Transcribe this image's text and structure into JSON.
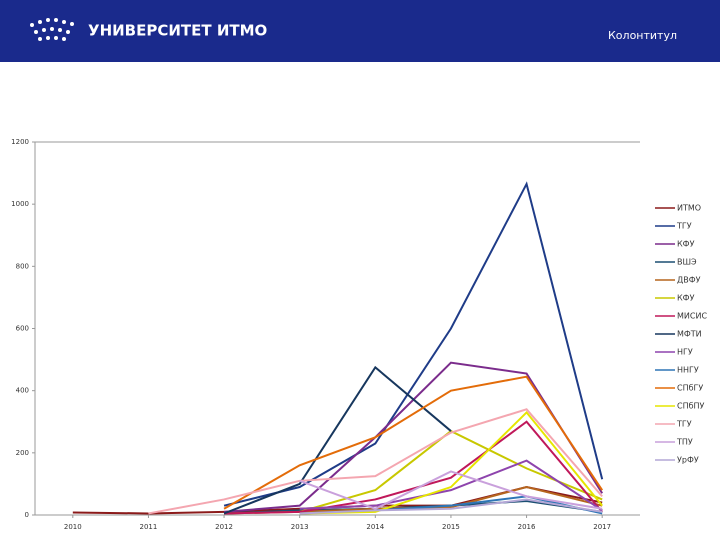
{
  "header": {
    "logo": "УНИВЕРСИТЕТ ИТМО",
    "running_title": "Колонтитул"
  },
  "chart_data": {
    "type": "line",
    "x": [
      2010,
      2011,
      2012,
      2013,
      2014,
      2015,
      2016,
      2017
    ],
    "xlim": [
      2009.5,
      2017.5
    ],
    "xticks": [
      2010,
      2011,
      2012,
      2013,
      2014,
      2015,
      2016,
      2017
    ],
    "ylim": [
      0,
      1200
    ],
    "yticks": [
      0,
      200,
      400,
      600,
      800,
      1000,
      1200
    ],
    "grid": false,
    "legend": "right",
    "series": [
      {
        "name": "ИТМО",
        "color": "#8b1a1a",
        "values": [
          8,
          5,
          10,
          20,
          30,
          30,
          90,
          40
        ]
      },
      {
        "name": "ТГУ",
        "color": "#1f3c88",
        "values": [
          null,
          null,
          30,
          90,
          230,
          600,
          1065,
          115
        ]
      },
      {
        "name": "КФУ",
        "color": "#7b2c8c",
        "values": [
          null,
          null,
          10,
          30,
          250,
          490,
          455,
          70
        ]
      },
      {
        "name": "ВШЭ",
        "color": "#1b4f72",
        "values": [
          null,
          null,
          5,
          15,
          20,
          30,
          45,
          10
        ]
      },
      {
        "name": "ДВФУ",
        "color": "#b5651d",
        "values": [
          null,
          null,
          5,
          10,
          20,
          25,
          90,
          30
        ]
      },
      {
        "name": "КФУ",
        "color": "#c8c800",
        "values": [
          null,
          null,
          null,
          10,
          80,
          270,
          150,
          50
        ]
      },
      {
        "name": "МИСИС",
        "color": "#c0185a",
        "values": [
          null,
          null,
          5,
          10,
          50,
          120,
          300,
          10
        ]
      },
      {
        "name": "МФТИ",
        "color": "#17375e",
        "values": [
          null,
          null,
          5,
          100,
          475,
          270,
          null,
          null
        ]
      },
      {
        "name": "НГУ",
        "color": "#8e44ad",
        "values": [
          null,
          null,
          null,
          20,
          30,
          80,
          175,
          15
        ]
      },
      {
        "name": "ННГУ",
        "color": "#2e75b6",
        "values": [
          null,
          null,
          null,
          5,
          15,
          30,
          60,
          5
        ]
      },
      {
        "name": "СПбГУ",
        "color": "#e36c09",
        "values": [
          null,
          null,
          20,
          160,
          250,
          400,
          445,
          80
        ]
      },
      {
        "name": "СПбПУ",
        "color": "#e6e600",
        "values": [
          null,
          null,
          null,
          5,
          10,
          90,
          330,
          30
        ]
      },
      {
        "name": "ТГУ",
        "color": "#f4a6b0",
        "values": [
          null,
          5,
          50,
          110,
          125,
          265,
          340,
          60
        ]
      },
      {
        "name": "ТПУ",
        "color": "#c9a0dc",
        "values": [
          null,
          null,
          null,
          110,
          20,
          140,
          60,
          20
        ]
      },
      {
        "name": "УрФУ",
        "color": "#b4a7d6",
        "values": [
          null,
          null,
          null,
          5,
          15,
          20,
          50,
          10
        ]
      }
    ]
  }
}
